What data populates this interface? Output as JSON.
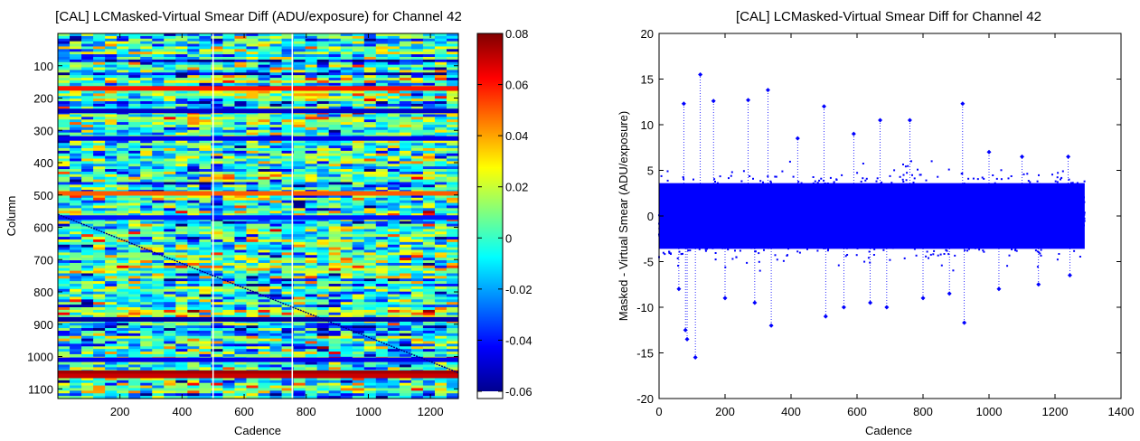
{
  "chart_data": [
    {
      "type": "heatmap",
      "title": "[CAL] LCMasked-Virtual Smear Diff (ADU/exposure) for Channel 42",
      "xlabel": "Cadence",
      "ylabel": "Column",
      "xlim": [
        0,
        1290
      ],
      "ylim": [
        1130,
        0
      ],
      "y_reversed": true,
      "xticks": [
        200,
        400,
        600,
        800,
        1000,
        1200
      ],
      "yticks": [
        100,
        200,
        300,
        400,
        500,
        600,
        700,
        800,
        900,
        1000,
        1100
      ],
      "colorbar": {
        "colormap": "jet",
        "clim": [
          -0.06,
          0.08
        ],
        "ticks": [
          0.08,
          0.06,
          0.04,
          0.02,
          0,
          -0.02,
          -0.04,
          -0.06
        ]
      },
      "gap_cadences": [
        500,
        755
      ],
      "strong_rows": [
        {
          "column": 170,
          "value": 0.06
        },
        {
          "column": 240,
          "value": -0.05
        },
        {
          "column": 325,
          "value": -0.045
        },
        {
          "column": 495,
          "value": 0.05
        },
        {
          "column": 570,
          "value": -0.04
        },
        {
          "column": 885,
          "value": -0.055
        },
        {
          "column": 1010,
          "value": -0.045
        },
        {
          "column": 1050,
          "value": 0.075
        },
        {
          "column": 1060,
          "value": 0.07
        }
      ],
      "diagonal_feature": {
        "start": [
          0,
          560
        ],
        "end": [
          1290,
          1050
        ]
      },
      "grid": false
    },
    {
      "type": "scatter",
      "title": "[CAL] LCMasked-Virtual Smear Diff for Channel 42",
      "xlabel": "Cadence",
      "ylabel": "Masked - Virtual Smear (ADU/exposure)",
      "xlim": [
        0,
        1400
      ],
      "ylim": [
        -20,
        20
      ],
      "xticks": [
        0,
        200,
        400,
        600,
        800,
        1000,
        1200,
        1400
      ],
      "yticks": [
        -20,
        -15,
        -10,
        -5,
        0,
        5,
        10,
        15,
        20
      ],
      "marker_color": "#0000ff",
      "x_range": [
        0,
        1290
      ],
      "bulk_band": [
        -5,
        5
      ],
      "outliers": [
        [
          60,
          -8
        ],
        [
          75,
          12.3
        ],
        [
          80,
          -12.5
        ],
        [
          85,
          -13.5
        ],
        [
          110,
          -15.5
        ],
        [
          125,
          15.5
        ],
        [
          165,
          12.6
        ],
        [
          200,
          -9
        ],
        [
          270,
          12.7
        ],
        [
          290,
          -9.5
        ],
        [
          330,
          13.8
        ],
        [
          340,
          -12
        ],
        [
          420,
          8.5
        ],
        [
          500,
          12
        ],
        [
          505,
          -11
        ],
        [
          560,
          -10
        ],
        [
          590,
          9
        ],
        [
          640,
          -9.5
        ],
        [
          670,
          10.5
        ],
        [
          690,
          -10
        ],
        [
          760,
          10.5
        ],
        [
          800,
          -9
        ],
        [
          880,
          -8.5
        ],
        [
          920,
          12.3
        ],
        [
          925,
          -11.7
        ],
        [
          1000,
          7
        ],
        [
          1030,
          -8
        ],
        [
          1100,
          6.5
        ],
        [
          1150,
          -7.5
        ],
        [
          1240,
          6.5
        ],
        [
          1245,
          -6.5
        ]
      ],
      "grid": false
    }
  ]
}
